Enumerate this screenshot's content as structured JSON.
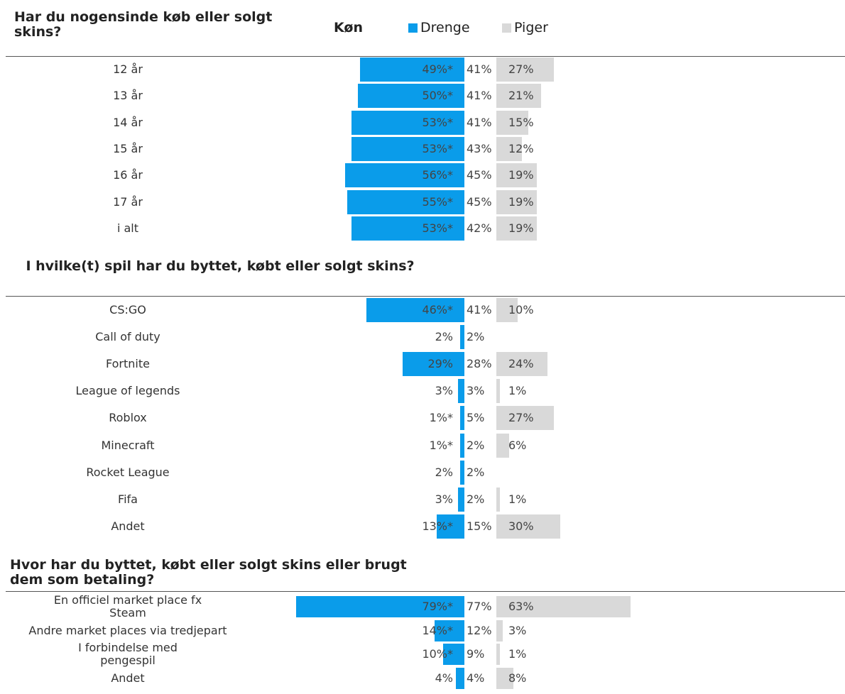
{
  "legend": {
    "title": "Køn",
    "items": [
      {
        "label": "Drenge",
        "color": "#0a9cea"
      },
      {
        "label": "Piger",
        "color": "#d9d9d9"
      }
    ]
  },
  "chart_data": [
    {
      "type": "bar",
      "title": "Har du nogensinde køb eller solgt skins?",
      "series": [
        {
          "name": "Drenge",
          "color": "#0a9cea"
        },
        {
          "name": "Piger",
          "color": "#d9d9d9"
        }
      ],
      "rows": [
        {
          "label": "12 år",
          "boys": 49,
          "boys_text": "49%*",
          "total_text": "41%",
          "girls": 27,
          "girls_text": "27%"
        },
        {
          "label": "13 år",
          "boys": 50,
          "boys_text": "50%*",
          "total_text": "41%",
          "girls": 21,
          "girls_text": "21%"
        },
        {
          "label": "14 år",
          "boys": 53,
          "boys_text": "53%*",
          "total_text": "41%",
          "girls": 15,
          "girls_text": "15%"
        },
        {
          "label": "15 år",
          "boys": 53,
          "boys_text": "53%*",
          "total_text": "43%",
          "girls": 12,
          "girls_text": "12%"
        },
        {
          "label": "16 år",
          "boys": 56,
          "boys_text": "56%*",
          "total_text": "45%",
          "girls": 19,
          "girls_text": "19%"
        },
        {
          "label": "17 år",
          "boys": 55,
          "boys_text": "55%*",
          "total_text": "45%",
          "girls": 19,
          "girls_text": "19%"
        },
        {
          "label": "i alt",
          "boys": 53,
          "boys_text": "53%*",
          "total_text": "42%",
          "girls": 19,
          "girls_text": "19%"
        }
      ]
    },
    {
      "type": "bar",
      "title": "I hvilke(t) spil har du byttet, købt eller solgt skins?",
      "series": [
        {
          "name": "Drenge",
          "color": "#0a9cea"
        },
        {
          "name": "Piger",
          "color": "#d9d9d9"
        }
      ],
      "rows": [
        {
          "label": "CS:GO",
          "boys": 46,
          "boys_text": "46%*",
          "total_text": "41%",
          "girls": 10,
          "girls_text": "10%"
        },
        {
          "label": "Call of duty",
          "boys": 2,
          "boys_text": "2%",
          "total_text": "2%",
          "girls": 0,
          "girls_text": ""
        },
        {
          "label": "Fortnite",
          "boys": 29,
          "boys_text": "29%",
          "total_text": "28%",
          "girls": 24,
          "girls_text": "24%"
        },
        {
          "label": "League of legends",
          "boys": 3,
          "boys_text": "3%",
          "total_text": "3%",
          "girls": 1,
          "girls_text": "1%"
        },
        {
          "label": "Roblox",
          "boys": 1,
          "boys_text": "1%*",
          "total_text": "5%",
          "girls": 27,
          "girls_text": "27%"
        },
        {
          "label": "Minecraft",
          "boys": 1,
          "boys_text": "1%*",
          "total_text": "2%",
          "girls": 6,
          "girls_text": "6%"
        },
        {
          "label": "Rocket League",
          "boys": 2,
          "boys_text": "2%",
          "total_text": "2%",
          "girls": 0,
          "girls_text": ""
        },
        {
          "label": "Fifa",
          "boys": 3,
          "boys_text": "3%",
          "total_text": "2%",
          "girls": 1,
          "girls_text": "1%"
        },
        {
          "label": "Andet",
          "boys": 13,
          "boys_text": "13%*",
          "total_text": "15%",
          "girls": 30,
          "girls_text": "30%"
        }
      ]
    },
    {
      "type": "bar",
      "title": "Hvor har du byttet, købt eller solgt skins eller brugt dem som betaling?",
      "series": [
        {
          "name": "Drenge",
          "color": "#0a9cea"
        },
        {
          "name": "Piger",
          "color": "#d9d9d9"
        }
      ],
      "rows": [
        {
          "label": "En officiel market place fx Steam",
          "boys": 79,
          "boys_text": "79%*",
          "total_text": "77%",
          "girls": 63,
          "girls_text": "63%"
        },
        {
          "label": "Andre market places via tredjepart",
          "boys": 14,
          "boys_text": "14%*",
          "total_text": "12%",
          "girls": 3,
          "girls_text": "3%"
        },
        {
          "label": "I forbindelse med pengespil",
          "boys": 10,
          "boys_text": "10%*",
          "total_text": "9%",
          "girls": 1,
          "girls_text": "1%"
        },
        {
          "label": "Andet",
          "boys": 4,
          "boys_text": "4%",
          "total_text": "4%",
          "girls": 8,
          "girls_text": "8%"
        }
      ]
    }
  ]
}
